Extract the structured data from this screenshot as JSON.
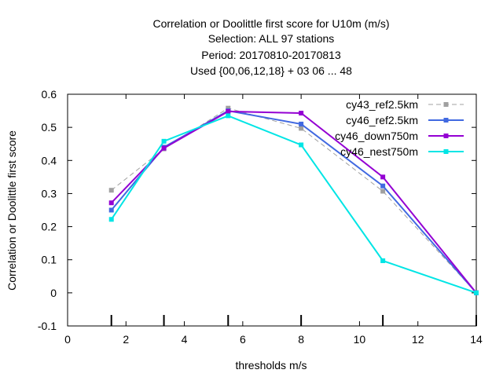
{
  "chart_data": {
    "type": "line",
    "title_lines": [
      "Correlation or Doolittle first score  for U10m (m/s)",
      "Selection: ALL      97 stations",
      "Period: 20170810-20170813",
      "Used {00,06,12,18} + 03 06 ... 48"
    ],
    "xlabel": "thresholds m/s",
    "ylabel": "Correlation or Doolittle first score",
    "xlim": [
      0,
      14
    ],
    "ylim": [
      -0.1,
      0.6
    ],
    "x_ticks": [
      0,
      2,
      4,
      6,
      8,
      10,
      12,
      14
    ],
    "x_tick_labels": [
      "0",
      "2",
      "4",
      "6",
      "8",
      "10",
      "12",
      "14"
    ],
    "y_ticks": [
      -0.1,
      0,
      0.1,
      0.2,
      0.3,
      0.4,
      0.5,
      0.6
    ],
    "y_tick_labels": [
      "-0.1",
      "0",
      "0.1",
      "0.2",
      "0.3",
      "0.4",
      "0.5",
      "0.6"
    ],
    "threshold_markers": [
      1.5,
      3.3,
      5.5,
      8.0,
      10.8,
      14.0
    ],
    "grid": false,
    "legend_position": "top-right",
    "x": [
      1.5,
      3.3,
      5.5,
      8.0,
      10.8,
      14.0
    ],
    "series": [
      {
        "name": "cy43_ref2.5km",
        "values": [
          0.31,
          0.435,
          0.558,
          0.497,
          0.307,
          0.0
        ],
        "color": "#a0a0a0",
        "dashed": true
      },
      {
        "name": "cy46_ref2.5km",
        "values": [
          0.25,
          0.44,
          0.55,
          0.51,
          0.323,
          0.0
        ],
        "color": "#4169e1",
        "dashed": false
      },
      {
        "name": "cy46_down750m",
        "values": [
          0.272,
          0.437,
          0.548,
          0.543,
          0.35,
          0.0
        ],
        "color": "#9400d3",
        "dashed": false
      },
      {
        "name": "cy46_nest750m",
        "values": [
          0.222,
          0.458,
          0.535,
          0.447,
          0.097,
          0.0
        ],
        "color": "#00e5e5",
        "dashed": false
      }
    ]
  }
}
